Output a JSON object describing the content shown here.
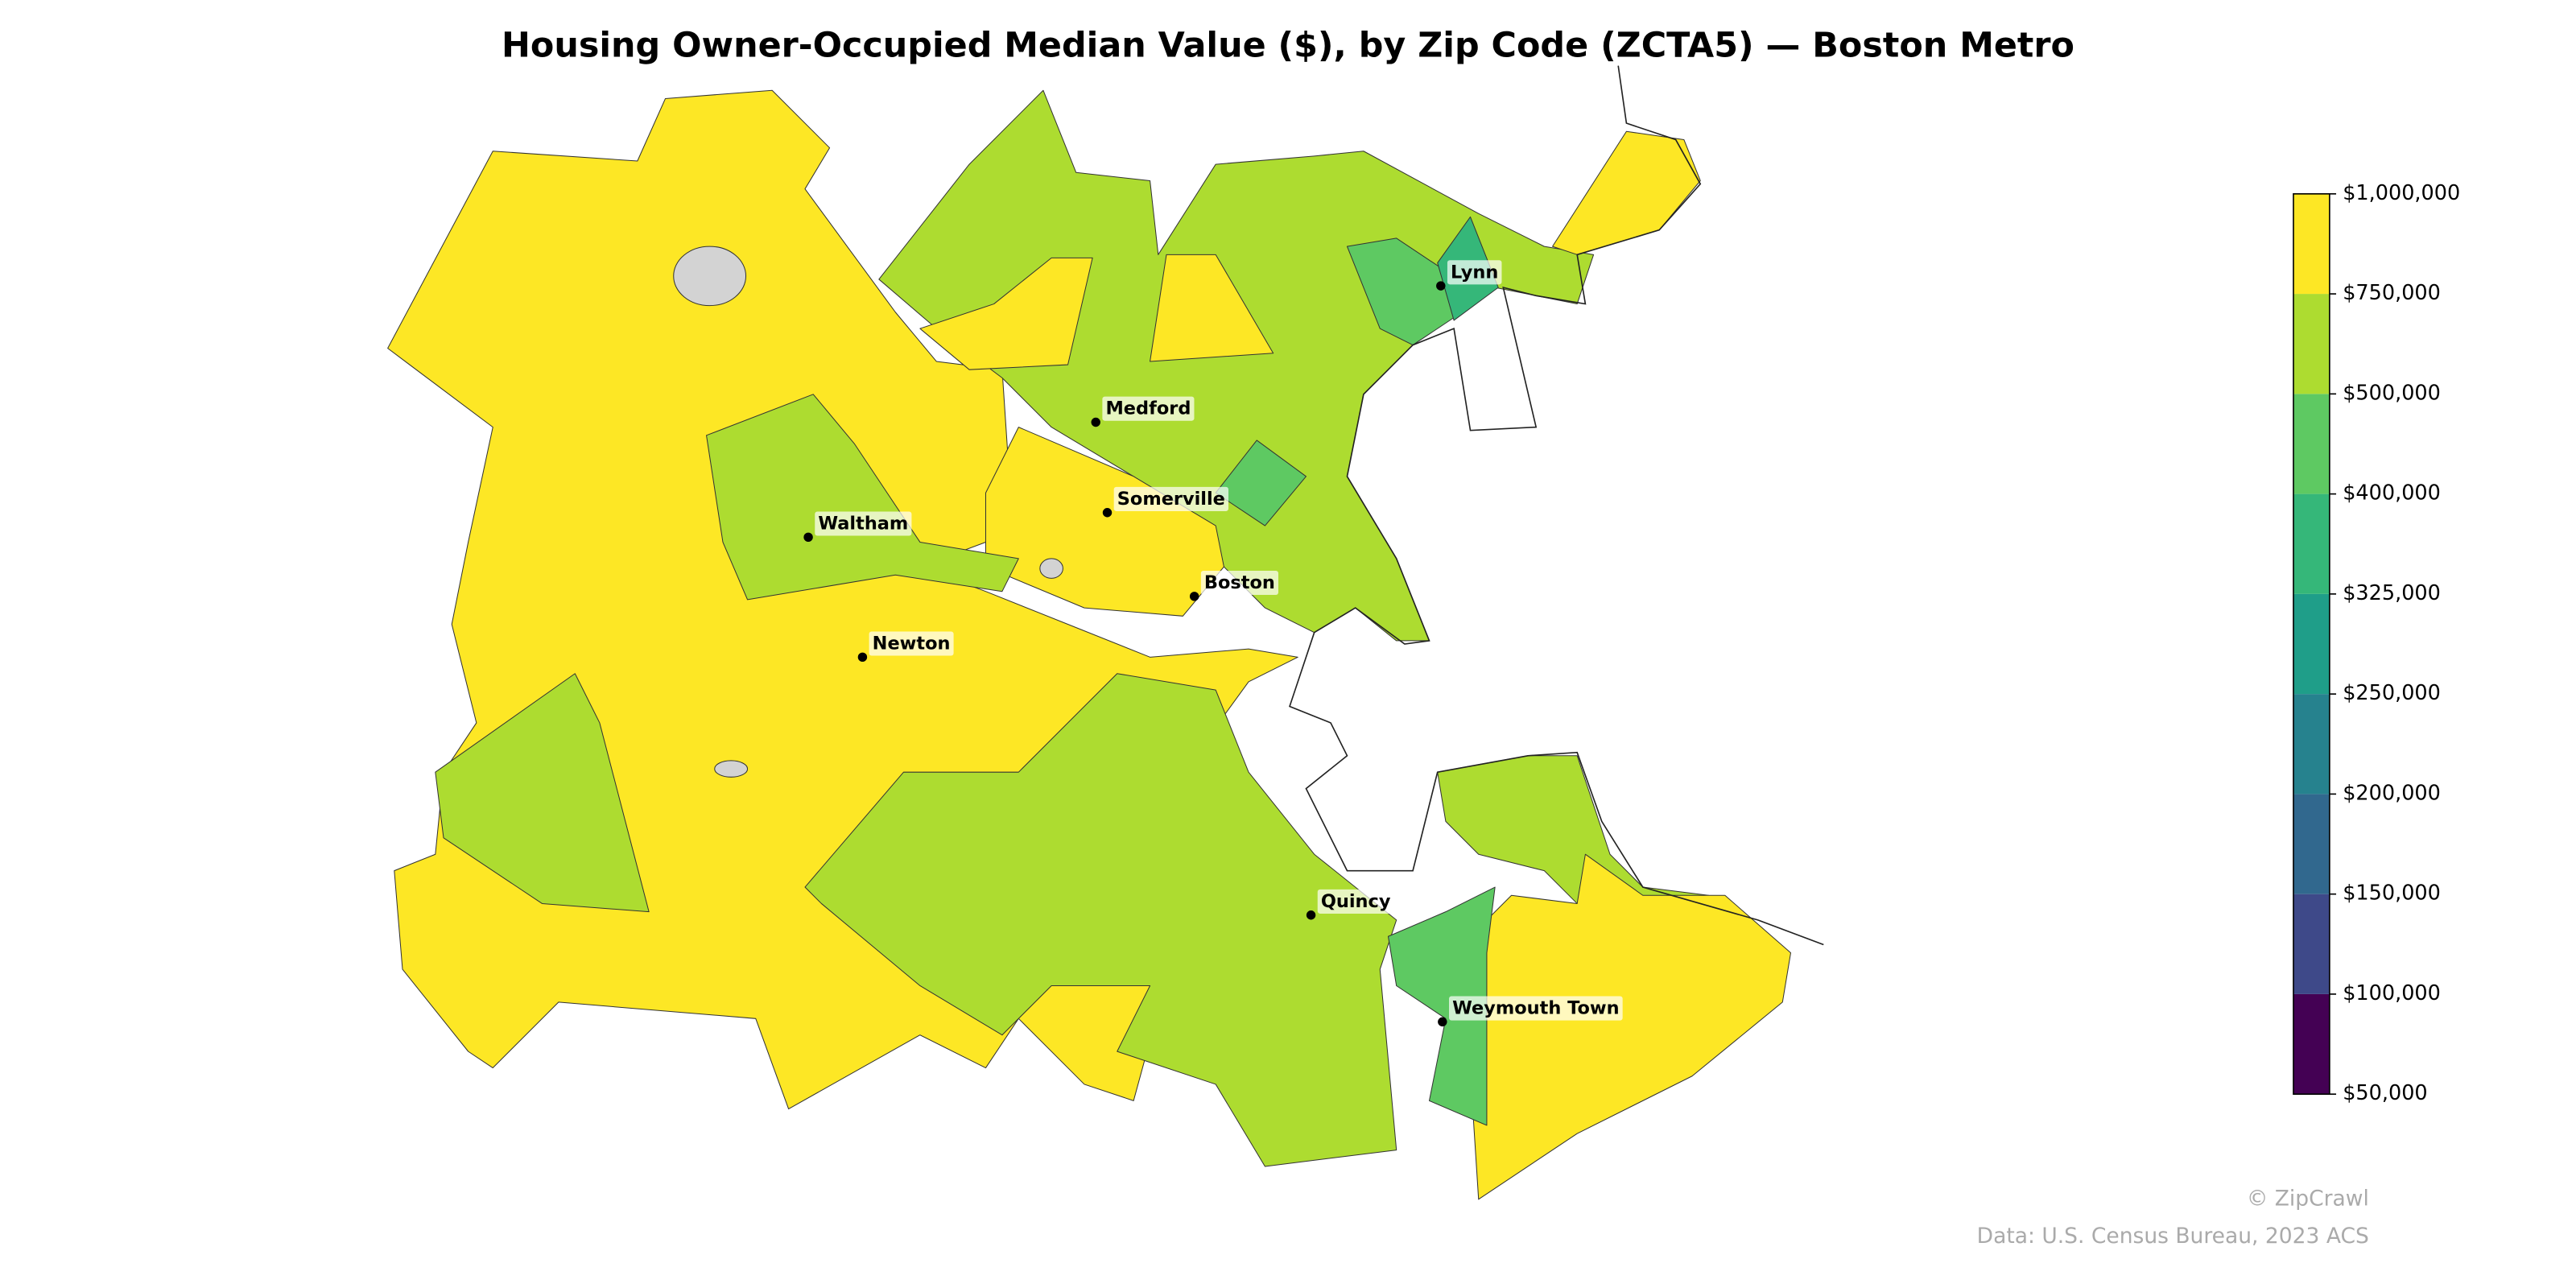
{
  "title": "Housing Owner-Occupied Median Value ($), by Zip Code (ZCTA5) — Boston Metro",
  "cities": [
    "Lynn",
    "Medford",
    "Somerville",
    "Waltham",
    "Boston",
    "Newton",
    "Quincy",
    "Weymouth Town"
  ],
  "colorbar": {
    "ticks": [
      {
        "value": 50000,
        "label": "$50,000"
      },
      {
        "value": 100000,
        "label": "$100,000"
      },
      {
        "value": 150000,
        "label": "$150,000"
      },
      {
        "value": 200000,
        "label": "$200,000"
      },
      {
        "value": 250000,
        "label": "$250,000"
      },
      {
        "value": 325000,
        "label": "$325,000"
      },
      {
        "value": 400000,
        "label": "$400,000"
      },
      {
        "value": 500000,
        "label": "$500,000"
      },
      {
        "value": 750000,
        "label": "$750,000"
      },
      {
        "value": 1000000,
        "label": "$1,000,000"
      }
    ],
    "colors": [
      "#440154",
      "#482878",
      "#3e4989",
      "#31688e",
      "#26828e",
      "#1f9e89",
      "#35b779",
      "#5ec962",
      "#addc30",
      "#fde725"
    ]
  },
  "footer": {
    "credit": "© ZipCrawl",
    "source": "Data: U.S. Census Bureau, 2023 ACS"
  }
}
